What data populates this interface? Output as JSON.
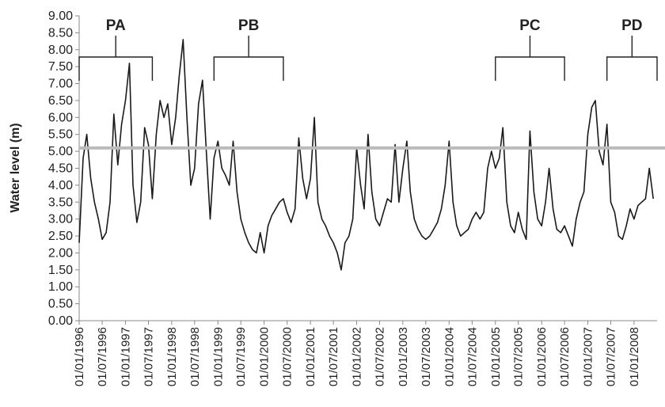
{
  "chart_data": {
    "type": "line",
    "y_label": "Water level (m)",
    "x": [
      "01/01/1996",
      "01/02/1996",
      "01/03/1996",
      "01/04/1996",
      "01/05/1996",
      "01/06/1996",
      "01/07/1996",
      "01/08/1996",
      "01/09/1996",
      "01/10/1996",
      "01/11/1996",
      "01/12/1996",
      "01/01/1997",
      "01/02/1997",
      "01/03/1997",
      "01/04/1997",
      "01/05/1997",
      "01/06/1997",
      "01/07/1997",
      "01/08/1997",
      "01/09/1997",
      "01/10/1997",
      "01/11/1997",
      "01/12/1997",
      "01/01/1998",
      "01/02/1998",
      "01/03/1998",
      "01/04/1998",
      "01/05/1998",
      "01/06/1998",
      "01/07/1998",
      "01/08/1998",
      "01/09/1998",
      "01/10/1998",
      "01/11/1998",
      "01/12/1998",
      "01/01/1999",
      "01/02/1999",
      "01/03/1999",
      "01/04/1999",
      "01/05/1999",
      "01/06/1999",
      "01/07/1999",
      "01/08/1999",
      "01/09/1999",
      "01/10/1999",
      "01/11/1999",
      "01/12/1999",
      "01/01/2000",
      "01/02/2000",
      "01/03/2000",
      "01/04/2000",
      "01/05/2000",
      "01/06/2000",
      "01/07/2000",
      "01/08/2000",
      "01/09/2000",
      "01/10/2000",
      "01/11/2000",
      "01/12/2000",
      "01/01/2001",
      "01/02/2001",
      "01/03/2001",
      "01/04/2001",
      "01/05/2001",
      "01/06/2001",
      "01/07/2001",
      "01/08/2001",
      "01/09/2001",
      "01/10/2001",
      "01/11/2001",
      "01/12/2001",
      "01/01/2002",
      "01/02/2002",
      "01/03/2002",
      "01/04/2002",
      "01/05/2002",
      "01/06/2002",
      "01/07/2002",
      "01/08/2002",
      "01/09/2002",
      "01/10/2002",
      "01/11/2002",
      "01/12/2002",
      "01/01/2003",
      "01/02/2003",
      "01/03/2003",
      "01/04/2003",
      "01/05/2003",
      "01/06/2003",
      "01/07/2003",
      "01/08/2003",
      "01/09/2003",
      "01/10/2003",
      "01/11/2003",
      "01/12/2003",
      "01/01/2004",
      "01/02/2004",
      "01/03/2004",
      "01/04/2004",
      "01/05/2004",
      "01/06/2004",
      "01/07/2004",
      "01/08/2004",
      "01/09/2004",
      "01/10/2004",
      "01/11/2004",
      "01/12/2004",
      "01/01/2005",
      "01/02/2005",
      "01/03/2005",
      "01/04/2005",
      "01/05/2005",
      "01/06/2005",
      "01/07/2005",
      "01/08/2005",
      "01/09/2005",
      "01/10/2005",
      "01/11/2005",
      "01/12/2005",
      "01/01/2006",
      "01/02/2006",
      "01/03/2006",
      "01/04/2006",
      "01/05/2006",
      "01/06/2006",
      "01/07/2006",
      "01/08/2006",
      "01/09/2006",
      "01/10/2006",
      "01/11/2006",
      "01/12/2006",
      "01/01/2007",
      "01/02/2007",
      "01/03/2007",
      "01/04/2007",
      "01/05/2007",
      "01/06/2007",
      "01/07/2007",
      "01/08/2007",
      "01/09/2007",
      "01/10/2007",
      "01/11/2007",
      "01/12/2007",
      "01/01/2008",
      "01/02/2008",
      "01/03/2008",
      "01/04/2008",
      "01/05/2008",
      "01/06/2008"
    ],
    "series": [
      {
        "color": "#1a1a1a",
        "values": [
          2.3,
          4.8,
          5.5,
          4.2,
          3.5,
          3.0,
          2.4,
          2.6,
          3.5,
          6.1,
          4.6,
          5.8,
          6.5,
          7.6,
          4.0,
          2.9,
          3.5,
          5.7,
          5.2,
          3.6,
          5.5,
          6.5,
          6.0,
          6.4,
          5.2,
          6.0,
          7.2,
          8.3,
          6.0,
          4.0,
          4.5,
          6.4,
          7.1,
          5.0,
          3.0,
          4.8,
          5.3,
          4.5,
          4.3,
          4.0,
          5.3,
          3.8,
          3.0,
          2.6,
          2.3,
          2.1,
          2.0,
          2.6,
          2.0,
          2.8,
          3.1,
          3.3,
          3.5,
          3.6,
          3.2,
          2.9,
          3.3,
          5.4,
          4.2,
          3.6,
          4.2,
          6.0,
          3.5,
          3.0,
          2.8,
          2.5,
          2.3,
          2.0,
          1.5,
          2.3,
          2.5,
          3.0,
          5.1,
          4.0,
          3.3,
          5.5,
          3.8,
          3.0,
          2.8,
          3.2,
          3.6,
          3.5,
          5.2,
          3.5,
          4.5,
          5.3,
          3.8,
          3.0,
          2.7,
          2.5,
          2.4,
          2.5,
          2.7,
          2.9,
          3.3,
          4.0,
          5.3,
          3.5,
          2.8,
          2.5,
          2.6,
          2.7,
          3.0,
          3.2,
          3.0,
          3.2,
          4.5,
          5.0,
          4.5,
          4.8,
          5.7,
          3.5,
          2.8,
          2.6,
          3.2,
          2.7,
          2.4,
          5.6,
          3.8,
          3.0,
          2.8,
          3.5,
          4.5,
          3.3,
          2.7,
          2.6,
          2.8,
          2.5,
          2.2,
          3.0,
          3.5,
          3.8,
          5.5,
          6.3,
          6.5,
          5.0,
          4.6,
          5.8,
          3.5,
          3.2,
          2.5,
          2.4,
          2.8,
          3.3,
          3.0,
          3.4,
          3.5,
          3.6,
          4.5,
          3.6
        ]
      }
    ],
    "threshold": 5.1,
    "threshold_color": "#bbbbbb",
    "xlim": [
      "01/01/1996",
      "01/07/2008"
    ],
    "xticks": [
      "01/01/1996",
      "01/07/1996",
      "01/01/1997",
      "01/07/1997",
      "01/01/1998",
      "01/07/1998",
      "01/01/1999",
      "01/07/1999",
      "01/01/2000",
      "01/07/2000",
      "01/01/2001",
      "01/07/2001",
      "01/01/2002",
      "01/07/2002",
      "01/01/2003",
      "01/07/2003",
      "01/01/2004",
      "01/07/2004",
      "01/01/2005",
      "01/07/2005",
      "01/01/2006",
      "01/07/2006",
      "01/01/2007",
      "01/07/2007",
      "01/01/2008"
    ],
    "ylim": [
      0,
      9
    ],
    "yticks": [
      {
        "value": 0,
        "label": "0.00"
      },
      {
        "value": 0.5,
        "label": "0.50"
      },
      {
        "value": 1,
        "label": "1.00"
      },
      {
        "value": 1.5,
        "label": "1.50"
      },
      {
        "value": 2,
        "label": "2.00"
      },
      {
        "value": 2.5,
        "label": "2.50"
      },
      {
        "value": 3,
        "label": "3.00"
      },
      {
        "value": 3.5,
        "label": "3.50"
      },
      {
        "value": 4,
        "label": "4.00"
      },
      {
        "value": 4.5,
        "label": "4.50"
      },
      {
        "value": 5,
        "label": "5.00"
      },
      {
        "value": 5.5,
        "label": "5.50"
      },
      {
        "value": 6,
        "label": "6.00"
      },
      {
        "value": 6.5,
        "label": "6.50"
      },
      {
        "value": 7,
        "label": "7.00"
      },
      {
        "value": 7.5,
        "label": "7.50"
      },
      {
        "value": 8,
        "label": "8.00"
      },
      {
        "value": 8.5,
        "label": "8.50"
      },
      {
        "value": 9,
        "label": "9.00"
      }
    ],
    "periods": [
      {
        "label": "PA",
        "start": "01/01/1996",
        "end": "01/08/1997"
      },
      {
        "label": "PB",
        "start": "01/12/1998",
        "end": "01/06/2000"
      },
      {
        "label": "PC",
        "start": "01/01/2005",
        "end": "01/07/2006"
      },
      {
        "label": "PD",
        "start": "01/06/2007",
        "end": "01/07/2008"
      }
    ]
  }
}
